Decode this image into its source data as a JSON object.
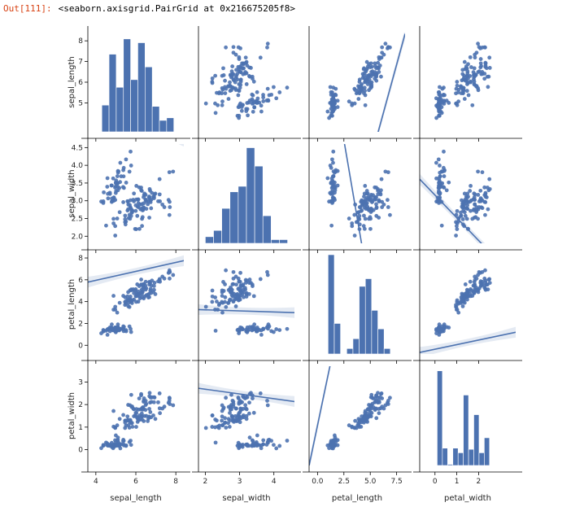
{
  "output": {
    "prompt": "Out[111]:",
    "text": "<seaborn.axisgrid.PairGrid at 0x216675205f8>"
  },
  "colors": {
    "accent": "#4c72b0",
    "prompt": "#d84315"
  },
  "chart_data": {
    "type": "pairgrid",
    "variables": [
      "sepal_length",
      "sepal_width",
      "petal_length",
      "petal_width"
    ],
    "ranges": [
      [
        3.6,
        8.4
      ],
      [
        1.8,
        4.6
      ],
      [
        -0.8,
        8.3
      ],
      [
        -0.7,
        3.7
      ]
    ],
    "ticks": [
      [
        4,
        6,
        8
      ],
      [
        2,
        3,
        4
      ],
      [
        0,
        2.5,
        5.0,
        7.5
      ],
      [
        0,
        1,
        2
      ]
    ],
    "tick_labels": [
      [
        "4",
        "6",
        "8"
      ],
      [
        "2",
        "3",
        "4"
      ],
      [
        "0.0",
        "2.5",
        "5.0",
        "7.5"
      ],
      [
        "0",
        "1",
        "2"
      ]
    ],
    "row_ticks": [
      [
        "5",
        "6",
        "7",
        "8"
      ],
      [
        "2.0",
        "2.5",
        "3.0",
        "3.5",
        "4.0",
        "4.5"
      ],
      [
        "0",
        "2",
        "4",
        "6",
        "8"
      ],
      [
        "0",
        "1",
        "2",
        "3"
      ]
    ],
    "row_tick_values": [
      [
        5,
        6,
        7,
        8
      ],
      [
        2.0,
        2.5,
        3.0,
        3.5,
        4.0,
        4.5
      ],
      [
        0,
        2,
        4,
        6,
        8
      ],
      [
        0,
        1,
        2,
        3
      ]
    ],
    "diag_ylim": [
      [
        4.3,
        8.2
      ],
      [
        1.9,
        4.6
      ],
      [
        -0.3,
        8.8
      ],
      [
        -0.6,
        3.7
      ]
    ],
    "histograms": [
      {
        "edges": [
          4.3,
          4.66,
          5.02,
          5.38,
          5.74,
          6.1,
          6.46,
          6.82,
          7.18,
          7.54,
          7.9
        ],
        "heights": [
          5.35,
          7.35,
          6.05,
          7.95,
          6.35,
          7.8,
          6.85,
          5.3,
          4.75,
          4.85
        ]
      },
      {
        "edges": [
          2.0,
          2.24,
          2.48,
          2.72,
          2.96,
          3.2,
          3.44,
          3.68,
          3.92,
          4.16,
          4.4
        ],
        "heights": [
          2.08,
          2.25,
          2.85,
          3.3,
          3.45,
          4.5,
          4.0,
          2.65,
          2.0,
          2.0
        ]
      },
      {
        "edges": [
          1.0,
          1.59,
          2.18,
          2.77,
          3.36,
          3.95,
          4.54,
          5.13,
          5.72,
          6.31,
          6.9
        ],
        "heights": [
          8.8,
          2.5,
          -0.3,
          0.2,
          1.1,
          5.9,
          6.6,
          3.7,
          2.0,
          0.2
        ]
      },
      {
        "edges": [
          0.1,
          0.34,
          0.58,
          0.82,
          1.06,
          1.3,
          1.54,
          1.78,
          2.02,
          2.26,
          2.5
        ],
        "heights": [
          3.5,
          0.15,
          -0.55,
          0.15,
          -0.05,
          2.45,
          0.1,
          1.6,
          -0.05,
          0.6
        ]
      }
    ],
    "regression": {
      "0-1": [
        3.09,
        -0.06
      ],
      "0-2": [
        -7.1,
        1.86
      ],
      "0-3": [
        -3.2,
        0.75
      ],
      "1-0": [
        6.53,
        -0.22
      ],
      "1-2": [
        9.06,
        -1.74
      ],
      "1-3": [
        3.16,
        -0.64
      ],
      "2-0": [
        4.31,
        0.41
      ],
      "2-1": [
        3.45,
        -0.1
      ],
      "2-3": [
        -0.36,
        0.42
      ],
      "3-0": [
        4.78,
        0.89
      ],
      "3-1": [
        3.1,
        -0.21
      ],
      "3-2": [
        1.08,
        2.23
      ]
    },
    "samples": [
      [
        5.1,
        3.5,
        1.4,
        0.2
      ],
      [
        4.9,
        3.0,
        1.4,
        0.2
      ],
      [
        4.7,
        3.2,
        1.3,
        0.2
      ],
      [
        4.6,
        3.1,
        1.5,
        0.2
      ],
      [
        5.0,
        3.6,
        1.4,
        0.2
      ],
      [
        5.4,
        3.9,
        1.7,
        0.4
      ],
      [
        4.6,
        3.4,
        1.4,
        0.3
      ],
      [
        5.0,
        3.4,
        1.5,
        0.2
      ],
      [
        4.4,
        2.9,
        1.4,
        0.2
      ],
      [
        4.9,
        3.1,
        1.5,
        0.1
      ],
      [
        5.4,
        3.7,
        1.5,
        0.2
      ],
      [
        4.8,
        3.4,
        1.6,
        0.2
      ],
      [
        4.8,
        3.0,
        1.4,
        0.1
      ],
      [
        4.3,
        3.0,
        1.1,
        0.1
      ],
      [
        5.8,
        4.0,
        1.2,
        0.2
      ],
      [
        5.7,
        4.4,
        1.5,
        0.4
      ],
      [
        5.4,
        3.9,
        1.3,
        0.4
      ],
      [
        5.1,
        3.5,
        1.4,
        0.3
      ],
      [
        5.7,
        3.8,
        1.7,
        0.3
      ],
      [
        5.1,
        3.8,
        1.5,
        0.3
      ],
      [
        5.4,
        3.4,
        1.7,
        0.2
      ],
      [
        5.1,
        3.7,
        1.5,
        0.4
      ],
      [
        4.6,
        3.6,
        1.0,
        0.2
      ],
      [
        5.1,
        3.3,
        1.7,
        0.5
      ],
      [
        4.8,
        3.4,
        1.9,
        0.2
      ],
      [
        5.0,
        3.0,
        1.6,
        0.2
      ],
      [
        5.0,
        3.4,
        1.6,
        0.4
      ],
      [
        5.2,
        3.5,
        1.5,
        0.2
      ],
      [
        5.2,
        3.4,
        1.4,
        0.2
      ],
      [
        4.7,
        3.2,
        1.6,
        0.2
      ],
      [
        4.8,
        3.1,
        1.6,
        0.2
      ],
      [
        5.4,
        3.4,
        1.5,
        0.4
      ],
      [
        5.2,
        4.1,
        1.5,
        0.1
      ],
      [
        5.5,
        4.2,
        1.4,
        0.2
      ],
      [
        4.9,
        3.1,
        1.5,
        0.2
      ],
      [
        5.0,
        3.2,
        1.2,
        0.2
      ],
      [
        5.5,
        3.5,
        1.3,
        0.2
      ],
      [
        4.9,
        3.6,
        1.4,
        0.1
      ],
      [
        4.4,
        3.0,
        1.3,
        0.2
      ],
      [
        5.1,
        3.4,
        1.5,
        0.2
      ],
      [
        5.0,
        3.5,
        1.3,
        0.3
      ],
      [
        4.5,
        2.3,
        1.3,
        0.3
      ],
      [
        4.4,
        3.2,
        1.3,
        0.2
      ],
      [
        5.0,
        3.5,
        1.6,
        0.6
      ],
      [
        5.1,
        3.8,
        1.9,
        0.4
      ],
      [
        4.8,
        3.0,
        1.4,
        0.3
      ],
      [
        5.1,
        3.8,
        1.6,
        0.2
      ],
      [
        4.6,
        3.2,
        1.4,
        0.2
      ],
      [
        5.3,
        3.7,
        1.5,
        0.2
      ],
      [
        5.0,
        3.3,
        1.4,
        0.2
      ],
      [
        7.0,
        3.2,
        4.7,
        1.4
      ],
      [
        6.4,
        3.2,
        4.5,
        1.5
      ],
      [
        6.9,
        3.1,
        4.9,
        1.5
      ],
      [
        5.5,
        2.3,
        4.0,
        1.3
      ],
      [
        6.5,
        2.8,
        4.6,
        1.5
      ],
      [
        5.7,
        2.8,
        4.5,
        1.3
      ],
      [
        6.3,
        3.3,
        4.7,
        1.6
      ],
      [
        4.9,
        2.4,
        3.3,
        1.0
      ],
      [
        6.6,
        2.9,
        4.6,
        1.3
      ],
      [
        5.2,
        2.7,
        3.9,
        1.4
      ],
      [
        5.0,
        2.0,
        3.5,
        1.0
      ],
      [
        5.9,
        3.0,
        4.2,
        1.5
      ],
      [
        6.0,
        2.2,
        4.0,
        1.0
      ],
      [
        6.1,
        2.9,
        4.7,
        1.4
      ],
      [
        5.6,
        2.9,
        3.6,
        1.3
      ],
      [
        6.7,
        3.1,
        4.4,
        1.4
      ],
      [
        5.6,
        3.0,
        4.5,
        1.5
      ],
      [
        5.8,
        2.7,
        4.1,
        1.0
      ],
      [
        6.2,
        2.2,
        4.5,
        1.5
      ],
      [
        5.6,
        2.5,
        3.9,
        1.1
      ],
      [
        5.9,
        3.2,
        4.8,
        1.8
      ],
      [
        6.1,
        2.8,
        4.0,
        1.3
      ],
      [
        6.3,
        2.5,
        4.9,
        1.5
      ],
      [
        6.1,
        2.8,
        4.7,
        1.2
      ],
      [
        6.4,
        2.9,
        4.3,
        1.3
      ],
      [
        6.6,
        3.0,
        4.4,
        1.4
      ],
      [
        6.8,
        2.8,
        4.8,
        1.4
      ],
      [
        6.7,
        3.0,
        5.0,
        1.7
      ],
      [
        6.0,
        2.9,
        4.5,
        1.5
      ],
      [
        5.7,
        2.6,
        3.5,
        1.0
      ],
      [
        5.5,
        2.4,
        3.8,
        1.1
      ],
      [
        5.5,
        2.4,
        3.7,
        1.0
      ],
      [
        5.8,
        2.7,
        3.9,
        1.2
      ],
      [
        6.0,
        2.7,
        5.1,
        1.6
      ],
      [
        5.4,
        3.0,
        4.5,
        1.5
      ],
      [
        6.0,
        3.4,
        4.5,
        1.6
      ],
      [
        6.7,
        3.1,
        4.7,
        1.5
      ],
      [
        6.3,
        2.3,
        4.4,
        1.3
      ],
      [
        5.6,
        3.0,
        4.1,
        1.3
      ],
      [
        5.5,
        2.5,
        4.0,
        1.3
      ],
      [
        5.5,
        2.6,
        4.4,
        1.2
      ],
      [
        6.1,
        3.0,
        4.6,
        1.4
      ],
      [
        5.8,
        2.6,
        4.0,
        1.2
      ],
      [
        5.0,
        2.3,
        3.3,
        1.0
      ],
      [
        5.6,
        2.7,
        4.2,
        1.3
      ],
      [
        5.7,
        3.0,
        4.2,
        1.2
      ],
      [
        5.7,
        2.9,
        4.2,
        1.3
      ],
      [
        6.2,
        2.9,
        4.3,
        1.3
      ],
      [
        5.1,
        2.5,
        3.0,
        1.1
      ],
      [
        5.7,
        2.8,
        4.1,
        1.3
      ],
      [
        6.3,
        3.3,
        6.0,
        2.5
      ],
      [
        5.8,
        2.7,
        5.1,
        1.9
      ],
      [
        7.1,
        3.0,
        5.9,
        2.1
      ],
      [
        6.3,
        2.9,
        5.6,
        1.8
      ],
      [
        6.5,
        3.0,
        5.8,
        2.2
      ],
      [
        7.6,
        3.0,
        6.6,
        2.1
      ],
      [
        4.9,
        2.5,
        4.5,
        1.7
      ],
      [
        7.3,
        2.9,
        6.3,
        1.8
      ],
      [
        6.7,
        2.5,
        5.8,
        1.8
      ],
      [
        7.2,
        3.6,
        6.1,
        2.5
      ],
      [
        6.5,
        3.2,
        5.1,
        2.0
      ],
      [
        6.4,
        2.7,
        5.3,
        1.9
      ],
      [
        6.8,
        3.0,
        5.5,
        2.1
      ],
      [
        5.7,
        2.5,
        5.0,
        2.0
      ],
      [
        5.8,
        2.8,
        5.1,
        2.4
      ],
      [
        6.4,
        3.2,
        5.3,
        2.3
      ],
      [
        6.5,
        3.0,
        5.5,
        1.8
      ],
      [
        7.7,
        3.8,
        6.7,
        2.2
      ],
      [
        7.7,
        2.6,
        6.9,
        2.3
      ],
      [
        6.0,
        2.2,
        5.0,
        1.5
      ],
      [
        6.9,
        3.2,
        5.7,
        2.3
      ],
      [
        5.6,
        2.8,
        4.9,
        2.0
      ],
      [
        7.7,
        2.8,
        6.7,
        2.0
      ],
      [
        6.3,
        2.7,
        4.9,
        1.8
      ],
      [
        6.7,
        3.3,
        5.7,
        2.1
      ],
      [
        7.2,
        3.2,
        6.0,
        1.8
      ],
      [
        6.2,
        2.8,
        4.8,
        1.8
      ],
      [
        6.1,
        3.0,
        4.9,
        1.8
      ],
      [
        6.4,
        2.8,
        5.6,
        2.1
      ],
      [
        7.2,
        3.0,
        5.8,
        1.6
      ],
      [
        7.4,
        2.8,
        6.1,
        1.9
      ],
      [
        7.9,
        3.8,
        6.4,
        2.0
      ],
      [
        6.4,
        2.8,
        5.6,
        2.2
      ],
      [
        6.3,
        2.8,
        5.1,
        1.5
      ],
      [
        6.1,
        2.6,
        5.6,
        1.4
      ],
      [
        7.7,
        3.0,
        6.1,
        2.3
      ],
      [
        6.3,
        3.4,
        5.6,
        2.4
      ],
      [
        6.4,
        3.1,
        5.5,
        1.8
      ],
      [
        6.0,
        3.0,
        4.8,
        1.8
      ],
      [
        6.9,
        3.1,
        5.4,
        2.1
      ],
      [
        6.7,
        3.1,
        5.6,
        2.4
      ],
      [
        6.9,
        3.1,
        5.1,
        2.3
      ],
      [
        5.8,
        2.7,
        5.1,
        1.9
      ],
      [
        6.8,
        3.2,
        5.9,
        2.3
      ],
      [
        6.7,
        3.3,
        5.7,
        2.5
      ],
      [
        6.7,
        3.0,
        5.2,
        2.3
      ],
      [
        6.3,
        2.5,
        5.0,
        1.9
      ],
      [
        6.5,
        3.0,
        5.2,
        2.0
      ],
      [
        6.2,
        3.4,
        5.4,
        2.3
      ],
      [
        5.9,
        3.0,
        5.1,
        1.8
      ]
    ]
  }
}
